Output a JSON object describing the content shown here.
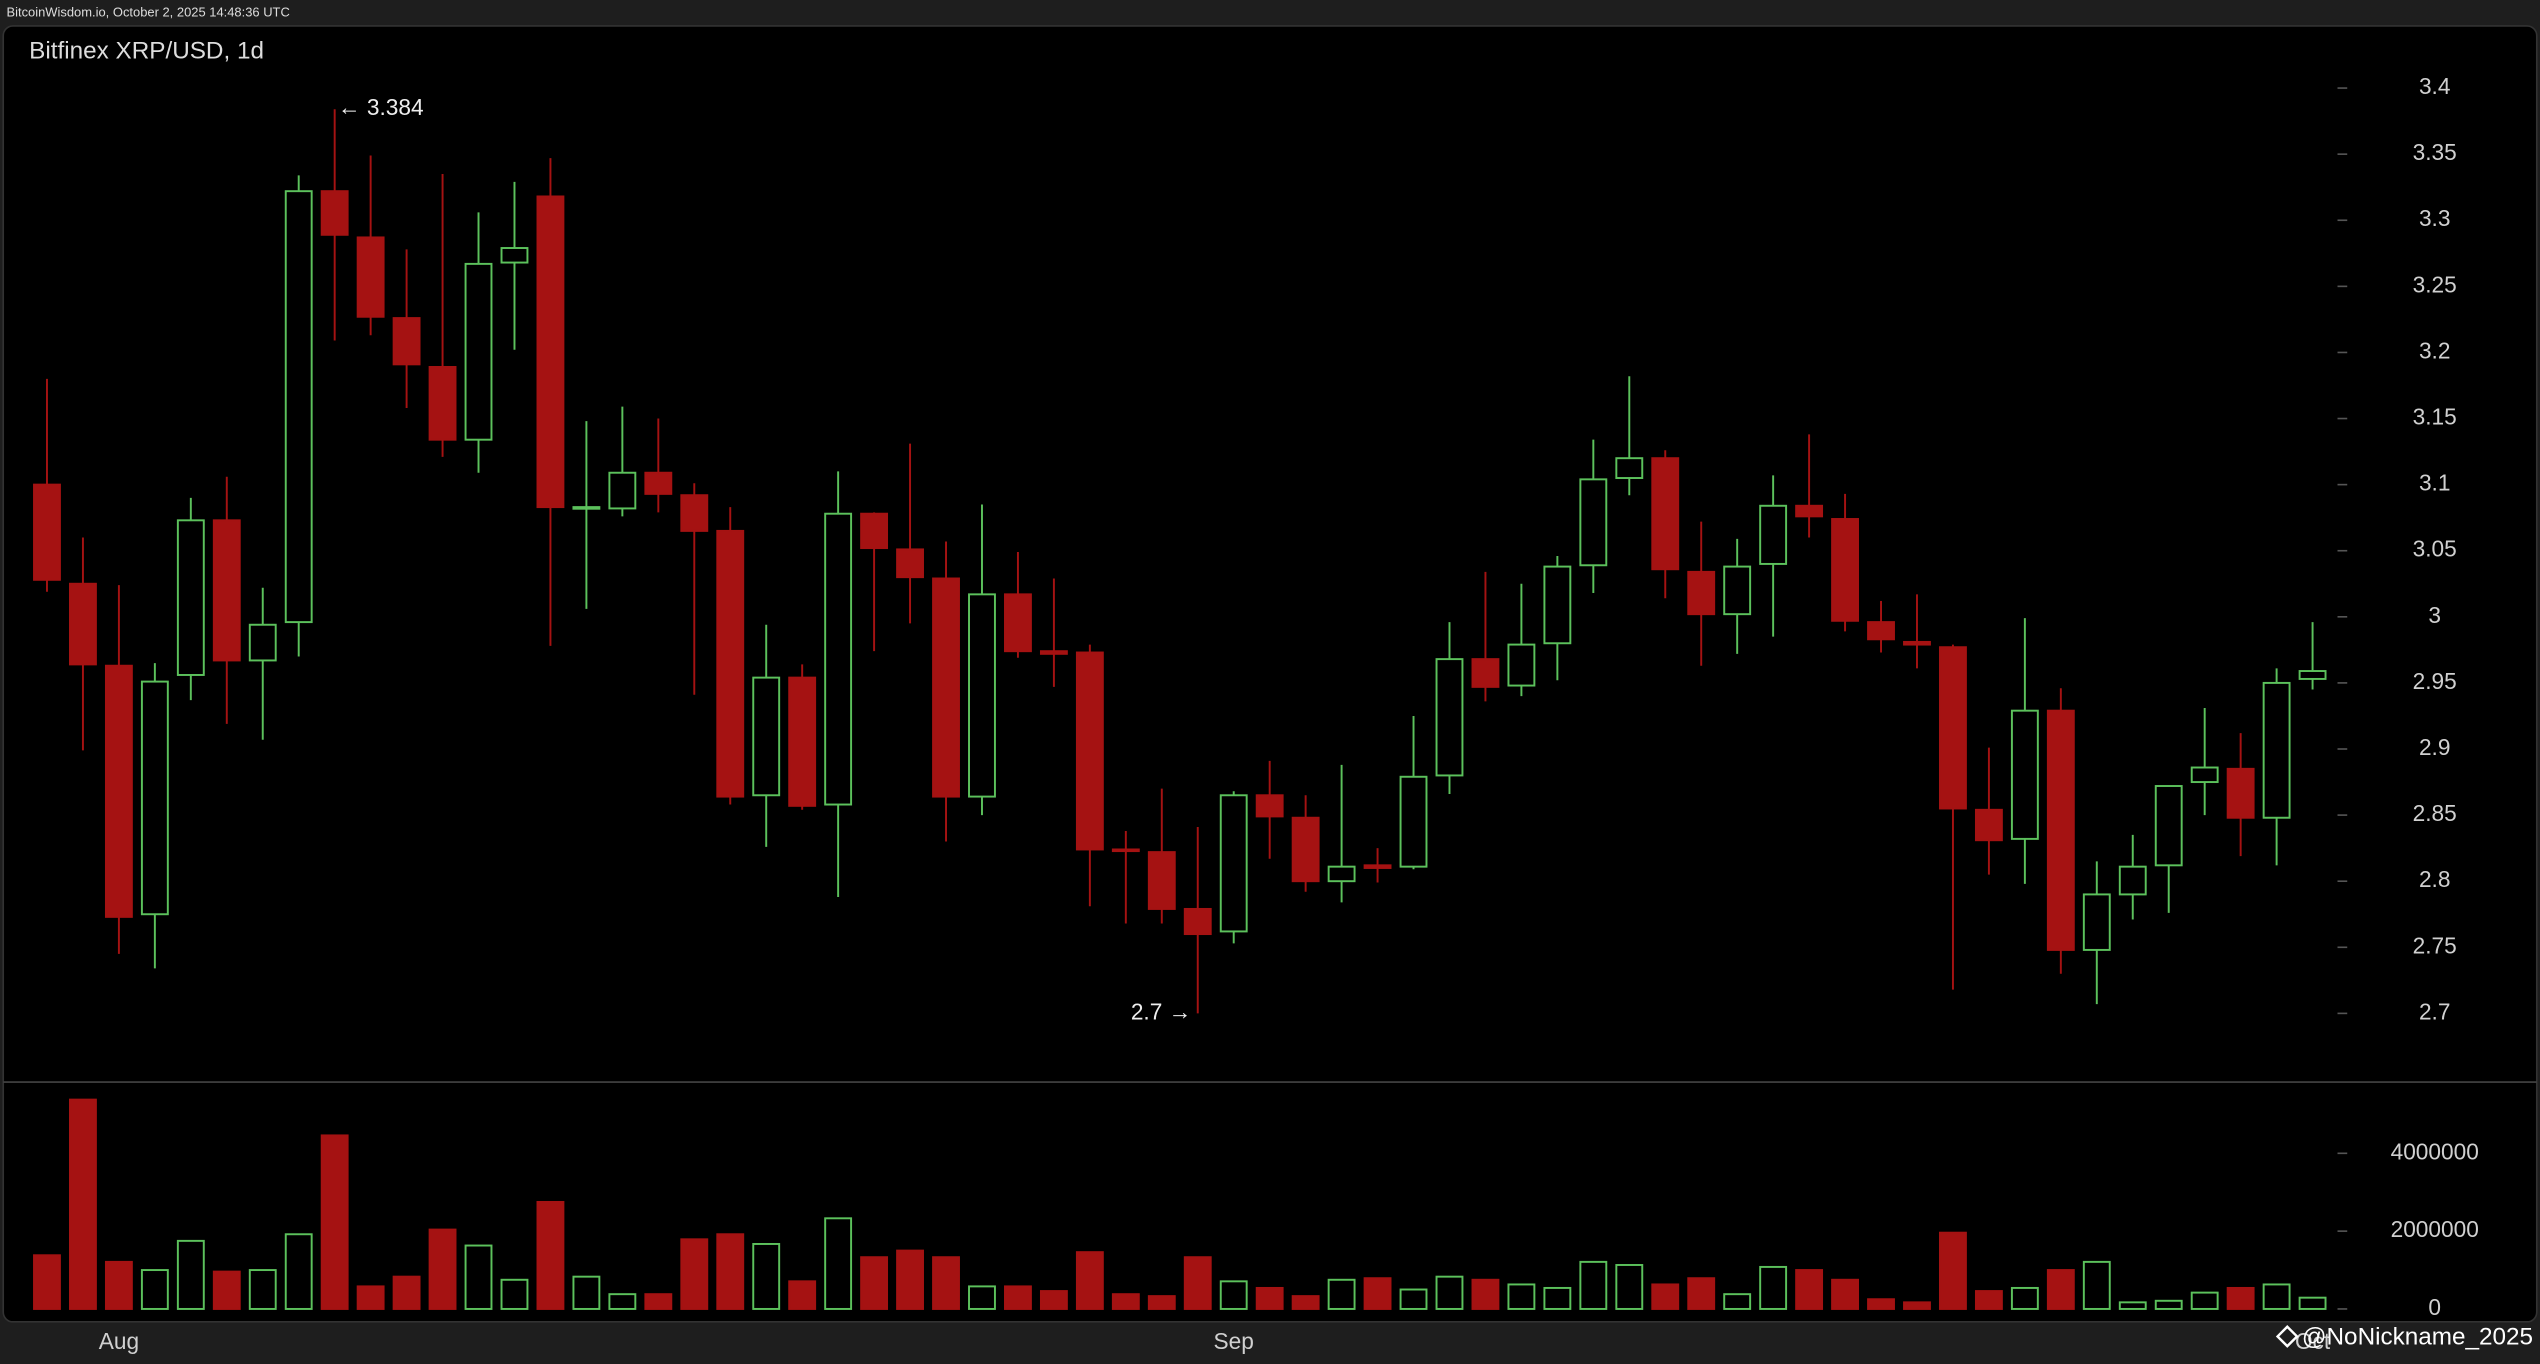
{
  "header": "BitcoinWisdom.io, October 2, 2025 14:48:36 UTC",
  "watermark": "@NoNickname_2025",
  "chart_data": [
    {
      "type": "candlestick",
      "title": "Bitfinex XRP/USD, 1d",
      "open": [
        3.1,
        3.025,
        2.963,
        2.775,
        2.956,
        3.073,
        2.967,
        2.996,
        3.322,
        3.287,
        3.226,
        3.189,
        3.134,
        3.268,
        3.318,
        3.082,
        3.082,
        3.109,
        3.092,
        3.065,
        2.865,
        2.954,
        2.858,
        3.078,
        3.051,
        3.029,
        2.864,
        3.017,
        2.974,
        2.973,
        2.824,
        2.822,
        2.779,
        2.762,
        2.865,
        2.848,
        2.8,
        2.812,
        2.811,
        2.88,
        2.968,
        2.948,
        2.98,
        3.039,
        3.105,
        3.12,
        3.034,
        3.002,
        3.04,
        3.084,
        3.074,
        2.996,
        2.981,
        2.977,
        2.854,
        2.832,
        2.929,
        2.748,
        2.79,
        2.812,
        2.875,
        2.885,
        2.848,
        2.953
      ],
      "high": [
        3.18,
        3.06,
        3.024,
        2.965,
        3.09,
        3.106,
        3.022,
        3.334,
        3.384,
        3.349,
        3.278,
        3.335,
        3.306,
        3.329,
        3.347,
        3.148,
        3.159,
        3.15,
        3.101,
        3.083,
        2.994,
        2.964,
        3.11,
        3.079,
        3.131,
        3.057,
        3.085,
        3.049,
        3.029,
        2.979,
        2.838,
        2.87,
        2.841,
        2.868,
        2.891,
        2.865,
        2.888,
        2.825,
        2.925,
        2.996,
        3.034,
        3.025,
        3.046,
        3.134,
        3.182,
        3.126,
        3.072,
        3.059,
        3.107,
        3.138,
        3.093,
        3.012,
        3.017,
        2.979,
        2.901,
        2.999,
        2.946,
        2.815,
        2.835,
        2.872,
        2.931,
        2.912,
        2.961,
        2.996
      ],
      "low": [
        3.019,
        2.899,
        2.745,
        2.734,
        2.937,
        2.919,
        2.907,
        2.97,
        3.209,
        3.213,
        3.158,
        3.121,
        3.109,
        3.202,
        2.978,
        3.006,
        3.076,
        3.079,
        2.941,
        2.858,
        2.826,
        2.854,
        2.788,
        2.974,
        2.995,
        2.83,
        2.85,
        2.969,
        2.947,
        2.781,
        2.768,
        2.768,
        2.7,
        2.753,
        2.817,
        2.792,
        2.784,
        2.799,
        2.809,
        2.866,
        2.936,
        2.94,
        2.952,
        3.018,
        3.092,
        3.014,
        2.963,
        2.972,
        2.985,
        3.06,
        2.989,
        2.973,
        2.961,
        2.718,
        2.805,
        2.798,
        2.73,
        2.707,
        2.771,
        2.776,
        2.85,
        2.819,
        2.812,
        2.945
      ],
      "close": [
        3.028,
        2.964,
        2.773,
        2.951,
        3.073,
        2.967,
        2.994,
        3.322,
        3.289,
        3.227,
        3.191,
        3.134,
        3.267,
        3.279,
        3.083,
        3.083,
        3.109,
        3.093,
        3.065,
        2.864,
        2.954,
        2.857,
        3.078,
        3.052,
        3.03,
        2.864,
        3.017,
        2.974,
        2.972,
        2.824,
        2.823,
        2.779,
        2.76,
        2.865,
        2.849,
        2.8,
        2.811,
        2.81,
        2.879,
        2.968,
        2.947,
        2.979,
        3.038,
        3.104,
        3.12,
        3.036,
        3.002,
        3.038,
        3.084,
        3.076,
        2.997,
        2.983,
        2.979,
        2.855,
        2.831,
        2.929,
        2.748,
        2.79,
        2.811,
        2.872,
        2.886,
        2.848,
        2.95,
        2.959
      ],
      "up_color": "#5cc15c",
      "down_color": "#a51212",
      "ylim": [
        2.648,
        3.447
      ],
      "yticks": [
        2.7,
        2.75,
        2.8,
        2.85,
        2.9,
        2.95,
        3,
        3.05,
        3.1,
        3.15,
        3.2,
        3.25,
        3.3,
        3.35,
        3.4
      ],
      "annotations": [
        {
          "value": 3.384,
          "label": "← 3.384"
        },
        {
          "value": 2.7,
          "label": "2.7 →"
        }
      ]
    },
    {
      "type": "bar",
      "categories": [
        null,
        null,
        "Aug",
        null,
        null,
        null,
        null,
        null,
        null,
        null,
        null,
        null,
        null,
        null,
        null,
        null,
        null,
        null,
        null,
        null,
        null,
        null,
        null,
        null,
        null,
        null,
        null,
        null,
        null,
        null,
        null,
        null,
        null,
        "Sep",
        null,
        null,
        null,
        null,
        null,
        null,
        null,
        null,
        null,
        null,
        null,
        null,
        null,
        null,
        null,
        null,
        null,
        null,
        null,
        null,
        null,
        null,
        null,
        null,
        null,
        null,
        null,
        null,
        null,
        "Oct"
      ],
      "values": [
        1380000,
        5380000,
        1210000,
        1000000,
        1750000,
        960000,
        1000000,
        1920000,
        4460000,
        580000,
        830000,
        2040000,
        1630000,
        750000,
        2750000,
        830000,
        380000,
        380000,
        1790000,
        1920000,
        1670000,
        710000,
        2330000,
        1330000,
        1500000,
        1330000,
        580000,
        580000,
        460000,
        1460000,
        380000,
        330000,
        1330000,
        710000,
        540000,
        330000,
        750000,
        790000,
        500000,
        830000,
        750000,
        630000,
        540000,
        1210000,
        1130000,
        630000,
        790000,
        380000,
        1080000,
        1000000,
        750000,
        250000,
        170000,
        1960000,
        460000,
        540000,
        1000000,
        1210000,
        170000,
        210000,
        420000,
        540000,
        630000,
        290000
      ],
      "ylim": [
        -290000,
        5830000
      ],
      "yticks": [
        0,
        2000000,
        4000000
      ]
    }
  ]
}
